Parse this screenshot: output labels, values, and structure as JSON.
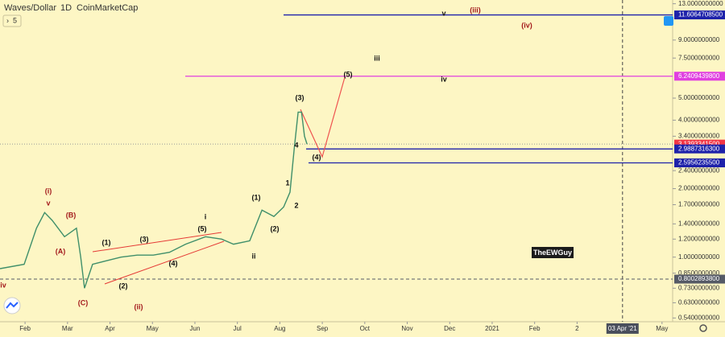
{
  "chart_data": {
    "type": "line",
    "title": "Waves/Dollar",
    "interval": "1D",
    "source": "CoinMarketCap",
    "toolbar_count": "5",
    "watermark": "TheEWGuy",
    "log_scale": true,
    "color": "#3f8f6a",
    "x": [
      -0.59,
      -0.02,
      0.27,
      0.46,
      0.64,
      0.93,
      1.21,
      1.31,
      1.4,
      1.59,
      1.88,
      2.26,
      2.64,
      3.02,
      3.4,
      3.78,
      4.25,
      4.63,
      4.91,
      5.29,
      5.58,
      5.86,
      6.09,
      6.24,
      6.34,
      6.43,
      6.51,
      6.58,
      6.64
    ],
    "values": [
      0.89,
      0.93,
      1.34,
      1.57,
      1.45,
      1.23,
      1.34,
      1.0,
      0.73,
      0.93,
      0.96,
      1.0,
      1.02,
      1.02,
      1.05,
      1.14,
      1.23,
      1.2,
      1.14,
      1.18,
      1.61,
      1.51,
      1.66,
      1.93,
      3.01,
      4.34,
      4.34,
      3.4,
      3.14
    ],
    "xlim": [
      -0.59,
      15.25
    ],
    "xticks": [
      {
        "value": 0,
        "label": "Feb"
      },
      {
        "value": 1,
        "label": "Mar"
      },
      {
        "value": 2,
        "label": "Apr"
      },
      {
        "value": 3,
        "label": "May"
      },
      {
        "value": 4,
        "label": "Jun"
      },
      {
        "value": 5,
        "label": "Jul"
      },
      {
        "value": 6,
        "label": "Aug"
      },
      {
        "value": 7,
        "label": "Sep"
      },
      {
        "value": 8,
        "label": "Oct"
      },
      {
        "value": 9,
        "label": "Nov"
      },
      {
        "value": 10,
        "label": "Dec"
      },
      {
        "value": 11,
        "label": "2021"
      },
      {
        "value": 12,
        "label": "Feb"
      },
      {
        "value": 13,
        "label": "2"
      },
      {
        "value": 15,
        "label": "May"
      }
    ],
    "crosshair_x": {
      "value": 14.07,
      "label": "03 Apr '21"
    },
    "ylim": [
      0.52,
      13.5
    ],
    "yticks": [
      {
        "value": 13,
        "label": "13.0000000000"
      },
      {
        "value": 9,
        "label": "9.0000000000"
      },
      {
        "value": 7.5,
        "label": "7.5000000000"
      },
      {
        "value": 5,
        "label": "5.0000000000"
      },
      {
        "value": 4,
        "label": "4.0000000000"
      },
      {
        "value": 3.4,
        "label": "3.4000000000"
      },
      {
        "value": 2.4,
        "label": "2.4000000000"
      },
      {
        "value": 2,
        "label": "2.0000000000"
      },
      {
        "value": 1.7,
        "label": "1.7000000000"
      },
      {
        "value": 1.4,
        "label": "1.4000000000"
      },
      {
        "value": 1.2,
        "label": "1.2000000000"
      },
      {
        "value": 1,
        "label": "1.0000000000"
      },
      {
        "value": 0.85,
        "label": "0.8500000000"
      },
      {
        "value": 0.73,
        "label": "0.7300000000"
      },
      {
        "value": 0.63,
        "label": "0.6300000000"
      },
      {
        "value": 0.54,
        "label": "0.5400000000"
      }
    ],
    "price_lines": [
      {
        "value": 11.60647085,
        "label": "11.6064708500",
        "color": "#1e22aa"
      },
      {
        "value": 6.24094398,
        "label": "6.2409439800",
        "color": "#e040e0"
      },
      {
        "value": 3.13933415,
        "label": "3.1393341500",
        "color": "#f23645"
      },
      {
        "value": 2.98873163,
        "label": "2.9887316300",
        "color": "#1e22aa"
      },
      {
        "value": 2.59562355,
        "label": "2.5956235500",
        "color": "#1e22aa"
      },
      {
        "value": 0.80028938,
        "label": "0.8002893800",
        "color": "#555a66"
      }
    ],
    "annotations": [
      {
        "text": "iv"
      },
      {
        "text": "(i)"
      },
      {
        "text": "v"
      },
      {
        "text": "(B)"
      },
      {
        "text": "(A)"
      },
      {
        "text": "(C)"
      },
      {
        "text": "(ii)"
      },
      {
        "text": "(1)"
      },
      {
        "text": "(2)"
      },
      {
        "text": "(3)"
      },
      {
        "text": "(4)"
      },
      {
        "text": "(5)"
      },
      {
        "text": "i"
      },
      {
        "text": "ii"
      },
      {
        "text": "(1)"
      },
      {
        "text": "(2)"
      },
      {
        "text": "1"
      },
      {
        "text": "2"
      },
      {
        "text": "(3)"
      },
      {
        "text": "4"
      },
      {
        "text": "(4)"
      },
      {
        "text": "(5)"
      },
      {
        "text": "iii"
      },
      {
        "text": "iv"
      },
      {
        "text": "v"
      },
      {
        "text": "(iii)"
      },
      {
        "text": "(iv)"
      }
    ]
  }
}
